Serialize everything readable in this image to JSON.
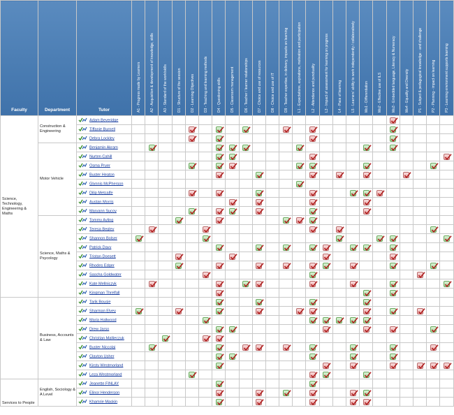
{
  "headers": {
    "faculty": "Faculty",
    "department": "Department",
    "tutor": "Tutor"
  },
  "columns": [
    "A1 - Progress made by Learners",
    "A2 - Acquisition & development of knowledge, skills",
    "A3 - Standard of the work/skills",
    "D1 - Structure of the session",
    "D2 - Learning Objectives",
    "D3 - Teaching and learning methods",
    "D4 - Questioning skills",
    "D5 - Classroom management",
    "D6 - Teacher / learner relationships",
    "D7 - Choice and use of resources",
    "D8 - Choice and use of IT",
    "D9 - Teacher expertise, in delivery, impacts on learning",
    "L1 - Expectations, aspirations, motivation and participation",
    "L2 - Attendance and punctuality",
    "L3 - Impact of assessment for learning on progress",
    "L4 - Pace of learning",
    "L5 - Learners' ability to work independently / collaboratively",
    "Mo1 - Differentiation",
    "Mo2 - Effective use of ILS",
    "Mo3 - Embedded language, Literacy & Numeracy",
    "Mo4 - Equality and Diversity",
    "P1 - Subject & pedagogical knowledge - and challenge",
    "P2 - Planning - impact on learning",
    "P3 - Learning environment supports learning"
  ],
  "colors": {
    "header": "#4a7eb5",
    "good": "#9fd395",
    "concern": "#e9a4a4"
  },
  "groups": [
    {
      "faculty": "Science, Technology, Engineering & Maths",
      "departments": [
        {
          "name": "Construction & Engineering",
          "tutors": [
            {
              "name": "Adam Beveridge",
              "marks": {
                "19": "r"
              }
            },
            {
              "name": "Tiffanie Burnell",
              "marks": {
                "4": "r",
                "6": "g",
                "8": "g",
                "11": "r",
                "13": "r",
                "19": "g"
              }
            },
            {
              "name": "Debra Lockley",
              "marks": {
                "4": "r",
                "6": "g",
                "13": "r",
                "19": "g"
              }
            }
          ]
        },
        {
          "name": "Motor Vehicle",
          "tutors": [
            {
              "name": "Benjamin Akram",
              "marks": {
                "1": "g",
                "6": "g",
                "7": "g",
                "8": "g",
                "12": "g",
                "17": "g",
                "19": "g"
              }
            },
            {
              "name": "Nurten Cahill",
              "marks": {
                "6": "g",
                "7": "g",
                "13": "r",
                "23": "r"
              }
            },
            {
              "name": "Osma Pryer",
              "marks": {
                "4": "g",
                "6": "g",
                "7": "r",
                "12": "g",
                "13": "g",
                "17": "g",
                "22": "g"
              }
            },
            {
              "name": "Buster Heaton",
              "marks": {
                "6": "r",
                "9": "g",
                "13": "r",
                "15": "r",
                "17": "r",
                "20": "r"
              }
            },
            {
              "name": "Glynnis McPherson",
              "marks": {
                "12": "g"
              }
            },
            {
              "name": "Dilip Metcalfe",
              "marks": {
                "4": "r",
                "6": "r",
                "9": "g",
                "13": "r",
                "16": "g",
                "17": "g",
                "18": "r"
              }
            },
            {
              "name": "Austan Morris",
              "marks": {
                "7": "r",
                "9": "r",
                "13": "r",
                "17": "r"
              }
            },
            {
              "name": "Maryann Sucoy",
              "marks": {
                "4": "g",
                "6": "r",
                "7": "g",
                "9": "r",
                "13": "g",
                "17": "r"
              }
            }
          ]
        },
        {
          "name": "Science, Maths & Psycology",
          "tutors": [
            {
              "name": "Tommy Ayling",
              "marks": {
                "3": "g",
                "6": "r",
                "11": "g",
                "12": "r",
                "13": "g"
              }
            },
            {
              "name": "Teresa Begley",
              "marks": {
                "1": "r",
                "5": "r",
                "13": "r",
                "15": "r",
                "22": "g"
              }
            },
            {
              "name": "Shannon Bolser",
              "marks": {
                "0": "g",
                "5": "g",
                "15": "g",
                "18": "g",
                "19": "g",
                "23": "g"
              }
            },
            {
              "name": "Patrick Davy",
              "marks": {
                "6": "g",
                "9": "g",
                "11": "g",
                "13": "g",
                "14": "r",
                "16": "g",
                "17": "g",
                "19": "g"
              }
            },
            {
              "name": "Tristan Doesett",
              "marks": {
                "3": "r",
                "7": "r",
                "14": "r",
                "19": "r"
              }
            },
            {
              "name": "Rhodes Edger",
              "marks": {
                "3": "g",
                "6": "r",
                "9": "r",
                "11": "r",
                "13": "r",
                "14": "g",
                "16": "r",
                "19": "g",
                "22": "g"
              }
            },
            {
              "name": "Sascha Goldwater",
              "marks": {
                "5": "r",
                "13": "g",
                "21": "r"
              }
            },
            {
              "name": "Kate Mellniczyk",
              "marks": {
                "1": "r",
                "6": "r",
                "8": "g",
                "9": "r",
                "13": "r",
                "16": "r",
                "19": "g",
                "23": "g"
              }
            },
            {
              "name": "Kingman Threlfall",
              "marks": {
                "6": "r",
                "17": "g",
                "19": "g"
              }
            }
          ]
        }
      ]
    },
    {
      "faculty": "",
      "departments": [
        {
          "name": "Business, Accounts & Law",
          "tutors": [
            {
              "name": "Tarik Bousie",
              "marks": {
                "6": "g",
                "9": "g",
                "13": "g",
                "17": "g"
              }
            },
            {
              "name": "Sharman Elvey",
              "marks": {
                "0": "g",
                "3": "r",
                "6": "g",
                "9": "r",
                "12": "r",
                "13": "r",
                "17": "r",
                "19": "g",
                "21": "r"
              }
            },
            {
              "name": "Maria Hallwood",
              "marks": {
                "5": "g",
                "13": "g",
                "14": "g",
                "15": "g",
                "16": "g",
                "17": "g"
              }
            },
            {
              "name": "Drew Jarso",
              "marks": {
                "6": "g",
                "7": "g",
                "14": "r",
                "17": "r",
                "19": "r",
                "22": "g"
              }
            },
            {
              "name": "Christian Mallieczuk",
              "marks": {
                "2": "g",
                "5": "r",
                "6": "r"
              }
            },
            {
              "name": "Buster Niccolai",
              "marks": {
                "1": "g",
                "6": "g",
                "8": "r",
                "9": "r",
                "11": "r",
                "13": "g",
                "16": "g",
                "19": "g",
                "22": "r"
              }
            },
            {
              "name": "Clayton Usher",
              "marks": {
                "6": "g",
                "7": "g",
                "13": "g",
                "16": "g",
                "19": "g"
              }
            },
            {
              "name": "Kirsty Westmorland",
              "marks": {
                "6": "g",
                "14": "r",
                "16": "r",
                "19": "r",
                "21": "r",
                "22": "r",
                "23": "r"
              }
            },
            {
              "name": "Leza Westmorland",
              "marks": {
                "4": "g",
                "13": "r",
                "14": "g",
                "17": "g"
              }
            }
          ]
        }
      ]
    },
    {
      "faculty": "Services to People",
      "departments": [
        {
          "name": "English, Sociology & A Level",
          "tutors": [
            {
              "name": "Jeanette FINLAY",
              "marks": {
                "6": "g",
                "13": "g"
              }
            },
            {
              "name": "Elinor Henderson",
              "marks": {
                "6": "r",
                "9": "r",
                "11": "g",
                "13": "r",
                "16": "r",
                "17": "g"
              }
            },
            {
              "name": "Khamrie Maskin",
              "marks": {
                "6": "g",
                "9": "r",
                "13": "r",
                "16": "r",
                "17": "r"
              }
            }
          ]
        }
      ]
    }
  ]
}
